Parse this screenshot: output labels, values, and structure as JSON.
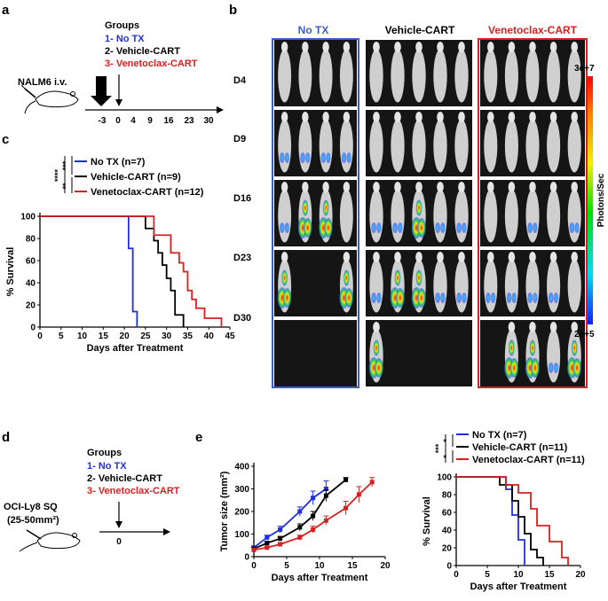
{
  "panels": {
    "a": {
      "letter": "a",
      "groups_title": "Groups",
      "groups": [
        "1- No TX",
        "2- Vehicle-CART",
        "3- Venetoclax-CART"
      ],
      "group_colors": [
        "#1f2fe0",
        "#000000",
        "#d92020"
      ],
      "injection_label": "NALM6 i.v.",
      "timeline_ticks": [
        "-3",
        "0",
        "4",
        "9",
        "16",
        "23",
        "30"
      ]
    },
    "b": {
      "letter": "b",
      "columns": [
        "No TX",
        "Vehicle-CART",
        "Venetoclax-CART"
      ],
      "rows": [
        "D4",
        "D9",
        "D16",
        "D23",
        "D30"
      ],
      "colorbar_max": "3e+7",
      "colorbar_min": "2e+5",
      "colorbar_label": "Photons/Sec"
    },
    "c": {
      "letter": "c",
      "sig_marks": [
        "****",
        "***",
        "**"
      ],
      "legend": [
        "No TX (n=7)",
        "Vehicle-CART (n=9)",
        "Venetoclax-CART (n=12)"
      ]
    },
    "d": {
      "letter": "d",
      "groups_title": "Groups",
      "groups": [
        "1- No TX",
        "2- Vehicle-CART",
        "3- Venetoclax-CART"
      ],
      "injection_label": "OCI-Ly8 SQ",
      "injection_size": "(25-50mm²)",
      "timeline_tick": "0"
    },
    "e": {
      "letter": "e",
      "sig_marks": [
        "***",
        "*",
        "*"
      ],
      "legend": [
        "No TX (n=7)",
        "Vehicle-CART (n=11)",
        "Venetoclax-CART (n=11)"
      ]
    }
  },
  "chart_data": [
    {
      "id": "survival-c",
      "type": "line",
      "xlabel": "Days after Treatment",
      "ylabel": "% Survival",
      "xlim": [
        0,
        45
      ],
      "ylim": [
        0,
        100
      ],
      "xticks": [
        0,
        5,
        10,
        15,
        20,
        25,
        30,
        35,
        40,
        45
      ],
      "yticks": [
        0,
        20,
        40,
        60,
        80,
        100
      ],
      "series": [
        {
          "name": "No TX (n=7)",
          "color": "#1f2fe0",
          "x": [
            0,
            21,
            21,
            22,
            22,
            23,
            23
          ],
          "y": [
            100,
            100,
            71,
            71,
            14,
            14,
            0
          ]
        },
        {
          "name": "Vehicle-CART (n=9)",
          "color": "#000000",
          "x": [
            0,
            25,
            25,
            27,
            27,
            28,
            28,
            29,
            29,
            30,
            30,
            31,
            31,
            32,
            32,
            34,
            34
          ],
          "y": [
            100,
            100,
            89,
            89,
            78,
            78,
            67,
            67,
            56,
            56,
            44,
            44,
            33,
            33,
            11,
            11,
            0
          ]
        },
        {
          "name": "Venetoclax-CART (n=12)",
          "color": "#d92020",
          "x": [
            0,
            27,
            27,
            31,
            31,
            33,
            33,
            34,
            34,
            35,
            35,
            36,
            36,
            37,
            37,
            39,
            39,
            41,
            41,
            43,
            43
          ],
          "y": [
            100,
            100,
            83,
            83,
            67,
            67,
            58,
            58,
            50,
            50,
            33,
            33,
            25,
            25,
            17,
            17,
            8,
            8,
            8,
            8,
            0
          ]
        }
      ]
    },
    {
      "id": "tumor-e",
      "type": "line",
      "xlabel": "Days after Treatment",
      "ylabel": "Tumor size (mm²)",
      "xlim": [
        0,
        20
      ],
      "ylim": [
        0,
        400
      ],
      "xticks": [
        0,
        5,
        10,
        15,
        20
      ],
      "yticks": [
        0,
        100,
        200,
        300,
        400
      ],
      "series": [
        {
          "name": "No TX",
          "color": "#1f2fe0",
          "x": [
            0,
            2,
            4,
            7,
            9,
            11
          ],
          "y": [
            40,
            85,
            120,
            200,
            260,
            300
          ],
          "err": [
            8,
            10,
            15,
            20,
            30,
            35
          ]
        },
        {
          "name": "Vehicle-CART",
          "color": "#000000",
          "x": [
            0,
            2,
            4,
            7,
            9,
            11,
            14
          ],
          "y": [
            35,
            60,
            80,
            130,
            180,
            270,
            340
          ],
          "err": [
            6,
            8,
            10,
            15,
            20,
            25,
            10
          ]
        },
        {
          "name": "Venetoclax-CART",
          "color": "#d92020",
          "x": [
            0,
            2,
            4,
            7,
            9,
            11,
            14,
            16,
            18
          ],
          "y": [
            30,
            40,
            55,
            85,
            120,
            160,
            215,
            275,
            330
          ],
          "err": [
            5,
            6,
            8,
            10,
            15,
            20,
            30,
            35,
            20
          ]
        }
      ]
    },
    {
      "id": "survival-e",
      "type": "line",
      "xlabel": "Days after Treatment",
      "ylabel": "% Survival",
      "xlim": [
        0,
        20
      ],
      "ylim": [
        0,
        100
      ],
      "xticks": [
        0,
        5,
        10,
        15,
        20
      ],
      "yticks": [
        0,
        20,
        40,
        60,
        80,
        100
      ],
      "series": [
        {
          "name": "No TX (n=7)",
          "color": "#1f2fe0",
          "x": [
            0,
            8,
            8,
            9,
            9,
            10,
            10,
            11,
            11
          ],
          "y": [
            100,
            100,
            86,
            86,
            57,
            57,
            29,
            29,
            0
          ]
        },
        {
          "name": "Vehicle-CART (n=11)",
          "color": "#000000",
          "x": [
            0,
            7,
            7,
            9,
            9,
            10,
            10,
            11,
            11,
            12,
            12,
            13,
            13,
            14,
            14
          ],
          "y": [
            100,
            100,
            91,
            91,
            73,
            73,
            55,
            55,
            36,
            36,
            18,
            18,
            9,
            9,
            0
          ]
        },
        {
          "name": "Venetoclax-CART (n=11)",
          "color": "#d92020",
          "x": [
            0,
            8,
            8,
            10,
            10,
            12,
            12,
            13,
            13,
            15,
            15,
            17,
            17,
            18,
            18
          ],
          "y": [
            100,
            100,
            91,
            91,
            82,
            82,
            64,
            64,
            45,
            45,
            27,
            27,
            9,
            9,
            0
          ]
        }
      ]
    }
  ]
}
